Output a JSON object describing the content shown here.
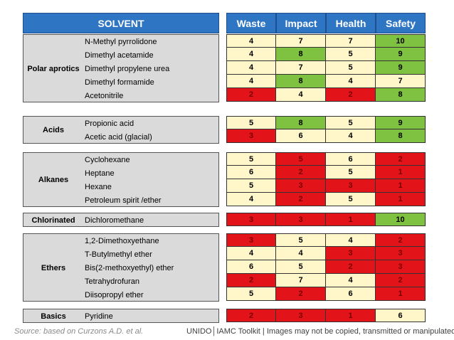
{
  "header": {
    "solvent": "SOLVENT",
    "waste": "Waste",
    "impact": "Impact",
    "health": "Health",
    "safety": "Safety"
  },
  "colors": {
    "yellow": "#FFF7C9",
    "green": "#7FC241",
    "red": "#E2141A",
    "header": "#2E75C3"
  },
  "groups": [
    {
      "name": "Polar aprotics",
      "rows": [
        {
          "solvent": "N-Methyl pyrrolidone",
          "waste": "4",
          "impact": "7",
          "health": "7",
          "safety": "10",
          "colors": [
            "y",
            "y",
            "y",
            "g"
          ]
        },
        {
          "solvent": "Dimethyl acetamide",
          "waste": "4",
          "impact": "8",
          "health": "5",
          "safety": "9",
          "colors": [
            "y",
            "g",
            "y",
            "g"
          ]
        },
        {
          "solvent": "Dimethyl propylene urea",
          "waste": "4",
          "impact": "7",
          "health": "5",
          "safety": "9",
          "colors": [
            "y",
            "y",
            "y",
            "g"
          ]
        },
        {
          "solvent": "Dimethyl formamide",
          "waste": "4",
          "impact": "8",
          "health": "4",
          "safety": "7",
          "colors": [
            "y",
            "g",
            "y",
            "y"
          ]
        },
        {
          "solvent": "Acetonitrile",
          "waste": "2",
          "impact": "4",
          "health": "2",
          "safety": "8",
          "colors": [
            "r",
            "y",
            "r",
            "g"
          ]
        }
      ]
    },
    {
      "name": "Acids",
      "rows": [
        {
          "solvent": "Propionic acid",
          "waste": "5",
          "impact": "8",
          "health": "5",
          "safety": "9",
          "colors": [
            "y",
            "g",
            "y",
            "g"
          ]
        },
        {
          "solvent": "Acetic acid (glacial)",
          "waste": "3",
          "impact": "6",
          "health": "4",
          "safety": "8",
          "colors": [
            "r",
            "y",
            "y",
            "g"
          ]
        }
      ]
    },
    {
      "name": "Alkanes",
      "rows": [
        {
          "solvent": "Cyclohexane",
          "waste": "5",
          "impact": "5",
          "health": "6",
          "safety": "2",
          "colors": [
            "y",
            "r",
            "y",
            "r"
          ]
        },
        {
          "solvent": "Heptane",
          "waste": "6",
          "impact": "2",
          "health": "5",
          "safety": "1",
          "colors": [
            "y",
            "r",
            "y",
            "r"
          ]
        },
        {
          "solvent": "Hexane",
          "waste": "5",
          "impact": "3",
          "health": "3",
          "safety": "1",
          "colors": [
            "y",
            "r",
            "r",
            "r"
          ]
        },
        {
          "solvent": "Petroleum spirit /ether",
          "waste": "4",
          "impact": "2",
          "health": "5",
          "safety": "1",
          "colors": [
            "y",
            "r",
            "y",
            "r"
          ]
        }
      ]
    },
    {
      "name": "Chlorinated",
      "rows": [
        {
          "solvent": "Dichloromethane",
          "waste": "3",
          "impact": "3",
          "health": "1",
          "safety": "10",
          "colors": [
            "r",
            "r",
            "r",
            "g"
          ]
        }
      ]
    },
    {
      "name": "Ethers",
      "rows": [
        {
          "solvent": "1,2-Dimethoxyethane",
          "waste": "3",
          "impact": "5",
          "health": "4",
          "safety": "2",
          "colors": [
            "r",
            "y",
            "y",
            "r"
          ]
        },
        {
          "solvent": "T-Butylmethyl ether",
          "waste": "4",
          "impact": "4",
          "health": "3",
          "safety": "3",
          "colors": [
            "y",
            "y",
            "r",
            "r"
          ]
        },
        {
          "solvent": "Bis(2-methoxyethyl) ether",
          "waste": "6",
          "impact": "5",
          "health": "2",
          "safety": "3",
          "colors": [
            "y",
            "y",
            "r",
            "r"
          ]
        },
        {
          "solvent": "Tetrahydrofuran",
          "waste": "2",
          "impact": "7",
          "health": "4",
          "safety": "2",
          "colors": [
            "r",
            "y",
            "y",
            "r"
          ]
        },
        {
          "solvent": "Diisopropyl ether",
          "waste": "5",
          "impact": "2",
          "health": "6",
          "safety": "1",
          "colors": [
            "y",
            "r",
            "y",
            "r"
          ]
        }
      ]
    },
    {
      "name": "Basics",
      "rows": [
        {
          "solvent": "Pyridine",
          "waste": "2",
          "impact": "3",
          "health": "1",
          "safety": "6",
          "colors": [
            "r",
            "r",
            "r",
            "y"
          ]
        }
      ]
    }
  ],
  "footer": {
    "source": "Source: based on Curzons A.D. et al.",
    "credit": "UNIDO│IAMC Toolkit | Images may not be copied, transmitted or manipulated"
  }
}
